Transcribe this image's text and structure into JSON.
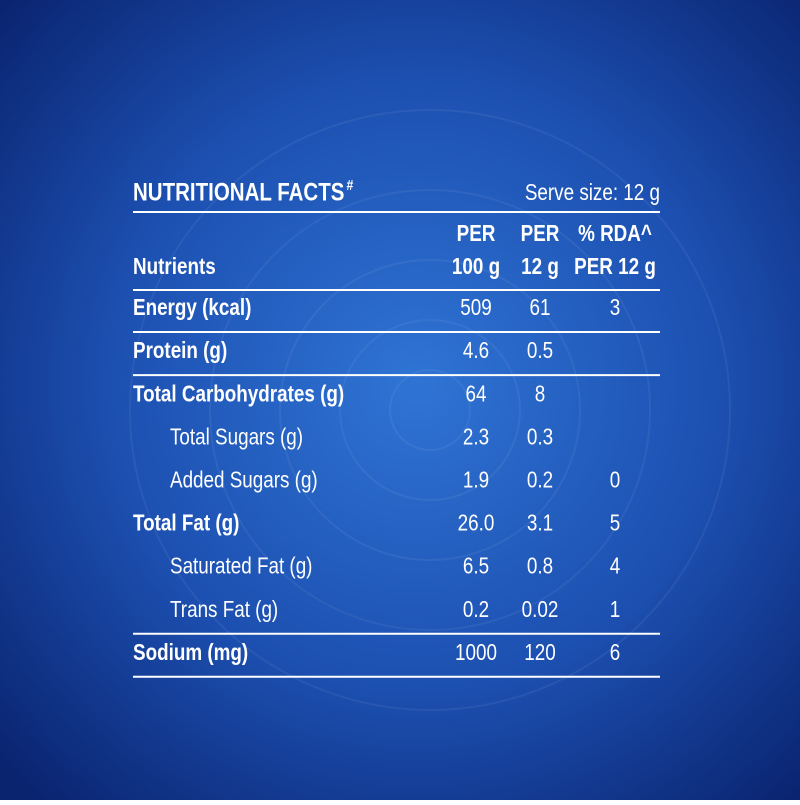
{
  "header": {
    "title": "NUTRITIONAL FACTS",
    "title_mark": "#",
    "serve_size": "Serve size: 12 g"
  },
  "columns": [
    [
      "Nutrients"
    ],
    [
      "PER",
      "100 g"
    ],
    [
      "PER",
      "12 g"
    ],
    [
      "% RDA^",
      "PER 12 g"
    ]
  ],
  "rows": [
    {
      "name": "Energy (kcal)",
      "values": [
        "509",
        "61",
        "3"
      ]
    },
    {
      "name": "Protein (g)",
      "values": [
        "4.6",
        "0.5",
        null
      ]
    },
    {
      "name": "Total Carbohydrates (g)",
      "values": [
        "64",
        "8",
        null
      ],
      "sub": [
        {
          "name": "Total Sugars (g)",
          "values": [
            "2.3",
            "0.3",
            null
          ]
        },
        {
          "name": "Added Sugars (g)",
          "values": [
            "1.9",
            "0.2",
            "0"
          ]
        }
      ]
    },
    {
      "name": "Total Fat (g)",
      "values": [
        "26.0",
        "3.1",
        "5"
      ],
      "sub": [
        {
          "name": "Saturated Fat (g)",
          "values": [
            "6.5",
            "0.8",
            "4"
          ]
        },
        {
          "name": "Trans Fat (g)",
          "values": [
            "0.2",
            "0.02",
            "1"
          ]
        }
      ]
    },
    {
      "name": "Sodium (mg)",
      "values": [
        "1000",
        "120",
        "6"
      ]
    }
  ]
}
